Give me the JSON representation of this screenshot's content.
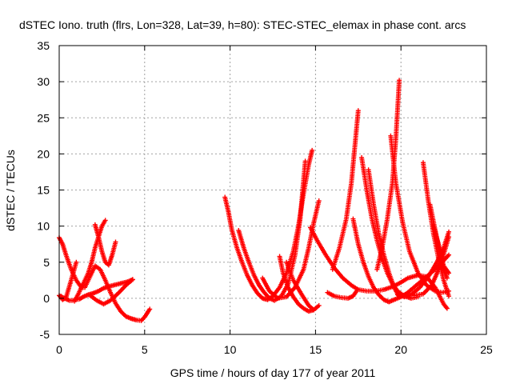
{
  "chart_data": {
    "type": "scatter",
    "title": "dSTEC Iono. truth (flrs, Lon=328, Lat=39, h=80): STEC-STEC_elemax in phase cont. arcs",
    "xlabel": "GPS time / hours of day 177 of year 2011",
    "ylabel": "dSTEC  / TECUs",
    "xlim": [
      0,
      25
    ],
    "ylim": [
      -5,
      35
    ],
    "xticks": [
      "0",
      "5",
      "10",
      "15",
      "20",
      "25"
    ],
    "yticks": [
      "-5",
      "0",
      "5",
      "10",
      "15",
      "20",
      "25",
      "30",
      "35"
    ],
    "grid": true,
    "marker": "plus",
    "color": "#ff0000",
    "series": [
      {
        "x": [
          0.0,
          0.2,
          0.4,
          0.7,
          1.0,
          1.3,
          1.5,
          1.8,
          2.1,
          2.4,
          2.7,
          3.0,
          3.3,
          3.6,
          3.9,
          4.2,
          4.5,
          4.8,
          5.0,
          5.3
        ],
        "y": [
          8.4,
          7.5,
          6.0,
          4.0,
          2.5,
          1.5,
          1.5,
          3.0,
          4.5,
          4.0,
          2.5,
          0.8,
          -0.7,
          -1.8,
          -2.5,
          -2.8,
          -3.0,
          -3.1,
          -2.6,
          -1.5
        ]
      },
      {
        "x": [
          0.0,
          0.2,
          0.4,
          0.7,
          1.0
        ],
        "y": [
          0.4,
          -0.2,
          0.1,
          2.5,
          5.0
        ]
      },
      {
        "x": [
          0.1,
          0.3,
          0.6,
          0.8,
          1.0,
          1.2,
          1.4,
          1.7,
          2.0,
          2.3,
          2.6,
          3.0,
          3.5,
          4.0,
          4.3
        ],
        "y": [
          0.3,
          0.0,
          -0.3,
          -0.3,
          -0.2,
          -0.1,
          0.2,
          0.5,
          0.7,
          1.0,
          1.4,
          1.7,
          2.0,
          2.3,
          2.6
        ]
      },
      {
        "x": [
          0.9,
          1.1,
          1.4,
          1.7,
          1.9,
          2.1,
          2.3,
          2.5,
          2.7
        ],
        "y": [
          -0.4,
          0.5,
          2.0,
          3.5,
          5.0,
          7.0,
          8.5,
          10.0,
          10.8
        ]
      },
      {
        "x": [
          2.1,
          2.3,
          2.5,
          2.7,
          2.9,
          3.1,
          3.3
        ],
        "y": [
          10.2,
          8.5,
          6.5,
          5.0,
          4.6,
          6.0,
          7.8
        ]
      },
      {
        "x": [
          1.8,
          2.2,
          2.6,
          3.0,
          3.5,
          3.9,
          4.3
        ],
        "y": [
          0.4,
          -0.3,
          -0.8,
          -0.3,
          0.8,
          1.8,
          2.6
        ]
      },
      {
        "x": [
          9.7,
          9.9,
          10.1,
          10.4,
          10.7,
          11.0,
          11.3,
          11.6,
          11.9,
          12.2,
          12.5,
          12.9,
          13.3,
          13.7,
          14.0,
          14.3,
          14.6,
          14.8
        ],
        "y": [
          14.0,
          12.0,
          9.5,
          7.0,
          5.0,
          3.2,
          1.8,
          0.7,
          0.0,
          -0.2,
          0.3,
          1.5,
          3.5,
          6.5,
          10.0,
          14.5,
          18.5,
          20.5
        ]
      },
      {
        "x": [
          10.5,
          10.8,
          11.1,
          11.4,
          11.7,
          12.0,
          12.3,
          12.6,
          13.0,
          13.4,
          13.8,
          14.1,
          14.4
        ],
        "y": [
          9.4,
          7.0,
          5.0,
          3.2,
          1.8,
          0.8,
          0.0,
          -0.3,
          0.3,
          2.0,
          6.0,
          11.0,
          19.0
        ]
      },
      {
        "x": [
          11.9,
          12.3,
          12.8,
          13.3,
          13.8,
          14.3,
          14.6,
          14.9,
          15.2
        ],
        "y": [
          2.8,
          1.0,
          0.0,
          0.2,
          1.5,
          4.0,
          7.0,
          10.5,
          13.5
        ]
      },
      {
        "x": [
          12.9,
          13.1,
          13.4,
          13.7,
          14.0,
          14.3,
          14.6,
          14.9,
          15.2
        ],
        "y": [
          5.8,
          3.5,
          1.5,
          0.2,
          -0.8,
          -1.4,
          -1.8,
          -1.6,
          -1.0
        ]
      },
      {
        "x": [
          13.3,
          13.7,
          14.2,
          14.6,
          14.9
        ],
        "y": [
          5.0,
          2.5,
          0.5,
          -1.0,
          -1.6
        ]
      },
      {
        "x": [
          14.7,
          15.1,
          15.6,
          16.1,
          16.6,
          17.1,
          17.5,
          18.0,
          18.5,
          19.0,
          19.5,
          20.0,
          20.4,
          21.0,
          21.5,
          22.0,
          22.5,
          22.7
        ],
        "y": [
          9.8,
          8.0,
          6.0,
          4.2,
          2.8,
          1.8,
          1.2,
          1.0,
          1.0,
          1.2,
          1.6,
          2.2,
          2.8,
          3.2,
          3.0,
          1.5,
          -0.8,
          -1.4
        ]
      },
      {
        "x": [
          15.7,
          16.1,
          16.5,
          16.9,
          17.2,
          17.4
        ],
        "y": [
          0.8,
          0.3,
          0.1,
          0.0,
          0.3,
          1.0
        ]
      },
      {
        "x": [
          16.0,
          16.4,
          16.8,
          17.1,
          17.3,
          17.5
        ],
        "y": [
          4.0,
          7.0,
          11.0,
          16.0,
          21.0,
          26.0
        ]
      },
      {
        "x": [
          17.2,
          17.5,
          17.8,
          18.1,
          18.4,
          18.7,
          19.0,
          19.3,
          19.6,
          20.0,
          20.4,
          20.8,
          21.2,
          21.6,
          22.0,
          22.4,
          22.8
        ],
        "y": [
          11.0,
          7.5,
          5.0,
          3.0,
          1.5,
          0.5,
          -0.2,
          -0.5,
          -0.2,
          0.2,
          0.8,
          1.6,
          2.4,
          3.2,
          4.0,
          5.0,
          6.0
        ]
      },
      {
        "x": [
          17.7,
          18.0,
          18.3,
          18.6,
          18.9,
          19.2,
          19.5,
          19.8,
          20.2,
          20.6,
          21.0
        ],
        "y": [
          19.5,
          15.0,
          11.0,
          8.0,
          5.5,
          3.5,
          2.0,
          1.0,
          0.3,
          0.0,
          0.2
        ]
      },
      {
        "x": [
          18.1,
          18.4,
          18.7,
          19.0,
          19.3,
          19.6,
          19.9
        ],
        "y": [
          17.8,
          13.0,
          9.0,
          6.0,
          3.5,
          1.5,
          0.2
        ]
      },
      {
        "x": [
          18.6,
          18.9,
          19.2,
          19.5,
          19.7,
          19.9
        ],
        "y": [
          4.0,
          7.0,
          11.0,
          16.0,
          22.0,
          30.2
        ]
      },
      {
        "x": [
          19.4,
          19.7,
          20.1,
          20.5,
          21.0,
          21.5,
          22.0,
          22.4,
          22.8
        ],
        "y": [
          22.5,
          16.0,
          10.5,
          6.5,
          3.5,
          1.8,
          1.0,
          0.8,
          1.0
        ]
      },
      {
        "x": [
          19.8,
          20.2,
          20.6,
          21.1,
          21.6,
          22.1,
          22.5,
          22.8
        ],
        "y": [
          0.5,
          0.2,
          0.5,
          1.5,
          3.0,
          5.0,
          7.0,
          9.2
        ]
      },
      {
        "x": [
          21.3,
          21.6,
          21.9,
          22.2,
          22.5,
          22.8
        ],
        "y": [
          18.8,
          13.5,
          9.0,
          5.5,
          2.5,
          0.3
        ]
      },
      {
        "x": [
          21.7,
          22.0,
          22.3,
          22.5,
          22.7
        ],
        "y": [
          13.0,
          9.5,
          6.0,
          4.0,
          2.8
        ]
      },
      {
        "x": [
          21.9,
          22.2,
          22.5,
          22.8
        ],
        "y": [
          10.0,
          7.5,
          4.5,
          3.5
        ]
      },
      {
        "x": [
          20.8,
          21.3,
          21.8,
          22.3,
          22.8
        ],
        "y": [
          0.4,
          0.6,
          1.8,
          4.5,
          8.5
        ]
      }
    ]
  }
}
